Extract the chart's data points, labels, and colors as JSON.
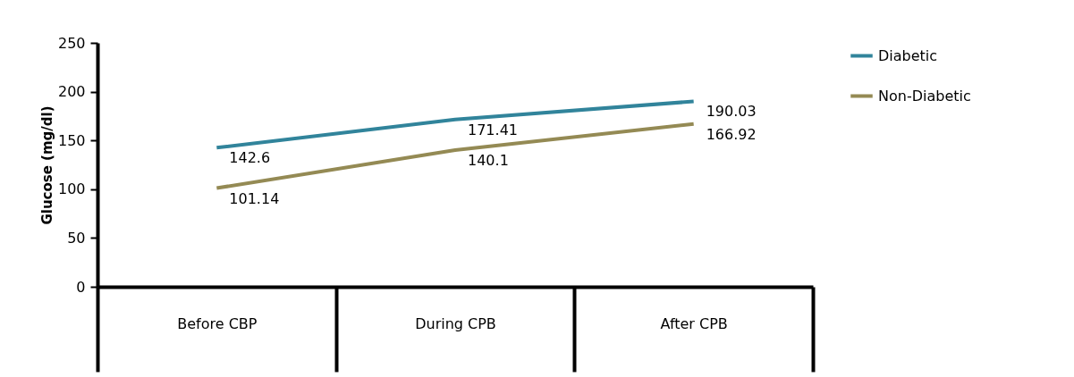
{
  "chart_data": {
    "type": "line",
    "ylabel": "Glucose (mg/dl)",
    "categories": [
      "Before CBP",
      "During CPB",
      "After CPB"
    ],
    "series": [
      {
        "name": "Diabetic",
        "color": "#31849b",
        "values": [
          142.6,
          171.41,
          190.03
        ]
      },
      {
        "name": "Non-Diabetic",
        "color": "#948a54",
        "values": [
          101.14,
          140.1,
          166.92
        ]
      }
    ],
    "ylim": [
      0,
      250
    ],
    "yticks": [
      0,
      50,
      100,
      150,
      200,
      250
    ],
    "data_labels": true,
    "legend": "right"
  }
}
